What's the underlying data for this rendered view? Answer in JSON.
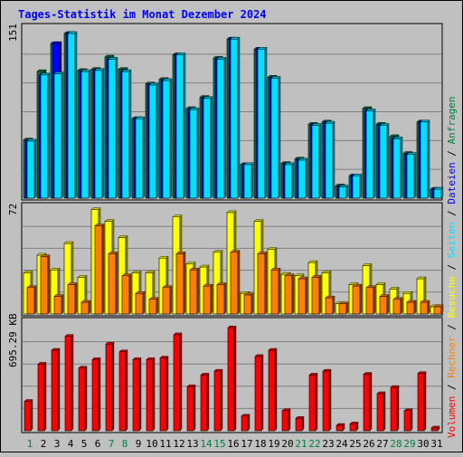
{
  "chart_data": {
    "type": "bar",
    "title": "Tages-Statistik im Monat Dezember 2024",
    "days": [
      "1",
      "2",
      "3",
      "4",
      "5",
      "6",
      "7",
      "8",
      "9",
      "10",
      "11",
      "12",
      "13",
      "14",
      "15",
      "16",
      "17",
      "18",
      "19",
      "20",
      "21",
      "22",
      "23",
      "24",
      "25",
      "26",
      "27",
      "28",
      "29",
      "30",
      "31"
    ],
    "weekend_days": [
      "1",
      "7",
      "8",
      "14",
      "15",
      "21",
      "22",
      "28",
      "29"
    ],
    "top_panel": {
      "ylabel": "151",
      "ymax": 151,
      "series": [
        {
          "name": "Anfragen",
          "color": "#008040",
          "values": [
            52,
            113,
            138,
            147,
            114,
            115,
            126,
            115,
            71,
            102,
            106,
            128,
            80,
            90,
            125,
            142,
            30,
            133,
            108,
            31,
            35,
            66,
            68,
            11,
            20,
            80,
            66,
            55,
            40,
            68,
            8
          ]
        },
        {
          "name": "Dateien",
          "color": "#0000ff",
          "values": [
            51,
            110,
            138,
            147,
            113,
            114,
            124,
            113,
            71,
            101,
            105,
            128,
            79,
            89,
            124,
            142,
            30,
            133,
            107,
            30,
            34,
            65,
            67,
            10,
            20,
            78,
            65,
            53,
            39,
            68,
            8
          ]
        },
        {
          "name": "Seiten",
          "color": "#00e0ff",
          "values": [
            51,
            110,
            111,
            147,
            113,
            114,
            124,
            113,
            71,
            101,
            105,
            128,
            79,
            89,
            124,
            142,
            30,
            133,
            107,
            30,
            34,
            65,
            67,
            10,
            20,
            78,
            65,
            53,
            39,
            68,
            8
          ]
        }
      ]
    },
    "middle_panel": {
      "ylabel": "72",
      "ymax": 72,
      "series": [
        {
          "name": "Besuche",
          "color": "#ffff00",
          "values": [
            28,
            40,
            30,
            48,
            25,
            71,
            63,
            52,
            28,
            28,
            38,
            66,
            34,
            32,
            42,
            69,
            14,
            63,
            44,
            27,
            26,
            35,
            28,
            7,
            20,
            33,
            20,
            17,
            14,
            24,
            5
          ]
        },
        {
          "name": "Rechner",
          "color": "#ff8000",
          "values": [
            18,
            39,
            12,
            20,
            8,
            60,
            41,
            26,
            14,
            10,
            18,
            41,
            30,
            19,
            20,
            42,
            13,
            41,
            30,
            26,
            24,
            25,
            11,
            7,
            19,
            18,
            12,
            10,
            8,
            8,
            5
          ]
        }
      ]
    },
    "bottom_panel": {
      "ylabel": "695.29 KB",
      "ymax": 695.29,
      "series": [
        {
          "name": "Volumen",
          "color": "#ff0000",
          "values": [
            190,
            430,
            520,
            610,
            405,
            460,
            560,
            510,
            460,
            460,
            470,
            620,
            285,
            360,
            385,
            665,
            95,
            480,
            520,
            130,
            80,
            360,
            385,
            35,
            45,
            365,
            240,
            280,
            130,
            370,
            18
          ]
        }
      ]
    }
  }
}
